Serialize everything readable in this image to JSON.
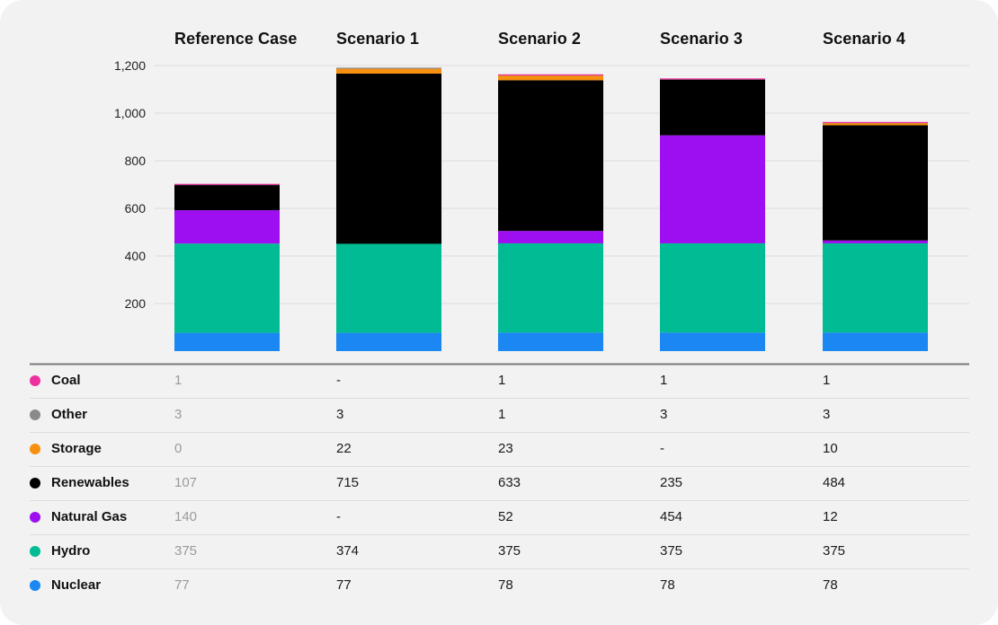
{
  "chart_data": {
    "type": "bar",
    "stacked": true,
    "categories": [
      "Reference Case",
      "Scenario 1",
      "Scenario 2",
      "Scenario 3",
      "Scenario 4"
    ],
    "ylim": [
      0,
      1200
    ],
    "yticks": [
      200,
      400,
      600,
      800,
      1000,
      1200
    ],
    "ytick_labels": [
      "200",
      "400",
      "600",
      "800",
      "1,000",
      "1,200"
    ],
    "grid": true,
    "series": [
      {
        "name": "Nuclear",
        "color": "#1a87f2",
        "values": [
          77,
          77,
          78,
          78,
          78
        ]
      },
      {
        "name": "Hydro",
        "color": "#00bb93",
        "values": [
          375,
          374,
          375,
          375,
          375
        ]
      },
      {
        "name": "Natural Gas",
        "color": "#9d0ef0",
        "values": [
          140,
          0,
          52,
          454,
          12
        ]
      },
      {
        "name": "Renewables",
        "color": "#000000",
        "values": [
          107,
          715,
          633,
          235,
          484
        ]
      },
      {
        "name": "Storage",
        "color": "#f7900f",
        "values": [
          0,
          22,
          23,
          0,
          10
        ]
      },
      {
        "name": "Other",
        "color": "#8a8a8a",
        "values": [
          3,
          3,
          1,
          3,
          3
        ]
      },
      {
        "name": "Coal",
        "color": "#ee2f9e",
        "values": [
          1,
          0,
          1,
          1,
          1
        ]
      }
    ]
  },
  "table": {
    "rows": [
      {
        "name": "Coal",
        "color": "#ee2f9e",
        "cells": [
          "1",
          "-",
          "1",
          "1",
          "1"
        ]
      },
      {
        "name": "Other",
        "color": "#8a8a8a",
        "cells": [
          "3",
          "3",
          "1",
          "3",
          "3"
        ]
      },
      {
        "name": "Storage",
        "color": "#f7900f",
        "cells": [
          "0",
          "22",
          "23",
          "-",
          "10"
        ]
      },
      {
        "name": "Renewables",
        "color": "#000000",
        "cells": [
          "107",
          "715",
          "633",
          "235",
          "484"
        ]
      },
      {
        "name": "Natural Gas",
        "color": "#9d0ef0",
        "cells": [
          "140",
          "-",
          "52",
          "454",
          "12"
        ]
      },
      {
        "name": "Hydro",
        "color": "#00bb93",
        "cells": [
          "375",
          "374",
          "375",
          "375",
          "375"
        ]
      },
      {
        "name": "Nuclear",
        "color": "#1a87f2",
        "cells": [
          "77",
          "77",
          "78",
          "78",
          "78"
        ]
      }
    ]
  }
}
